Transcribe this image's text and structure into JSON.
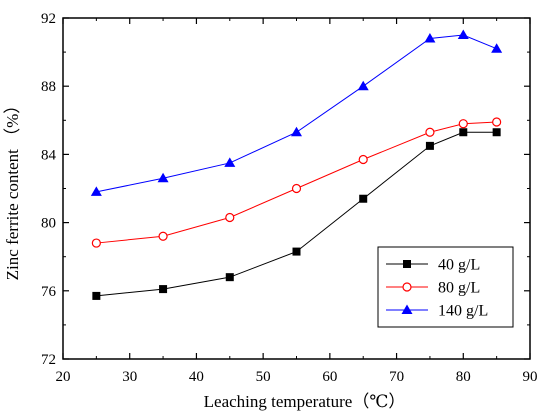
{
  "chart_data": {
    "type": "line",
    "title": "",
    "xlabel": "Leaching temperature（℃）",
    "ylabel": "Zinc ferrite content （%）",
    "xlim": [
      20,
      90
    ],
    "ylim": [
      72,
      92
    ],
    "x_ticks": [
      20,
      30,
      40,
      50,
      60,
      70,
      80,
      90
    ],
    "y_ticks": [
      72,
      76,
      80,
      84,
      88,
      92
    ],
    "grid": false,
    "legend_position": "bottom-right",
    "x": [
      25,
      35,
      45,
      55,
      65,
      75,
      80,
      85
    ],
    "series": [
      {
        "name": "40 g/L",
        "color": "#000000",
        "marker": "square",
        "values": [
          75.7,
          76.1,
          76.8,
          78.3,
          81.4,
          84.5,
          85.3,
          85.3
        ]
      },
      {
        "name": "80 g/L",
        "color": "#ff0000",
        "marker": "circle",
        "values": [
          78.8,
          79.2,
          80.3,
          82.0,
          83.7,
          85.3,
          85.8,
          85.9
        ]
      },
      {
        "name": "140 g/L",
        "color": "#0000ff",
        "marker": "triangle",
        "values": [
          81.8,
          82.6,
          83.5,
          85.3,
          88.0,
          90.8,
          91.0,
          90.2
        ]
      }
    ]
  }
}
